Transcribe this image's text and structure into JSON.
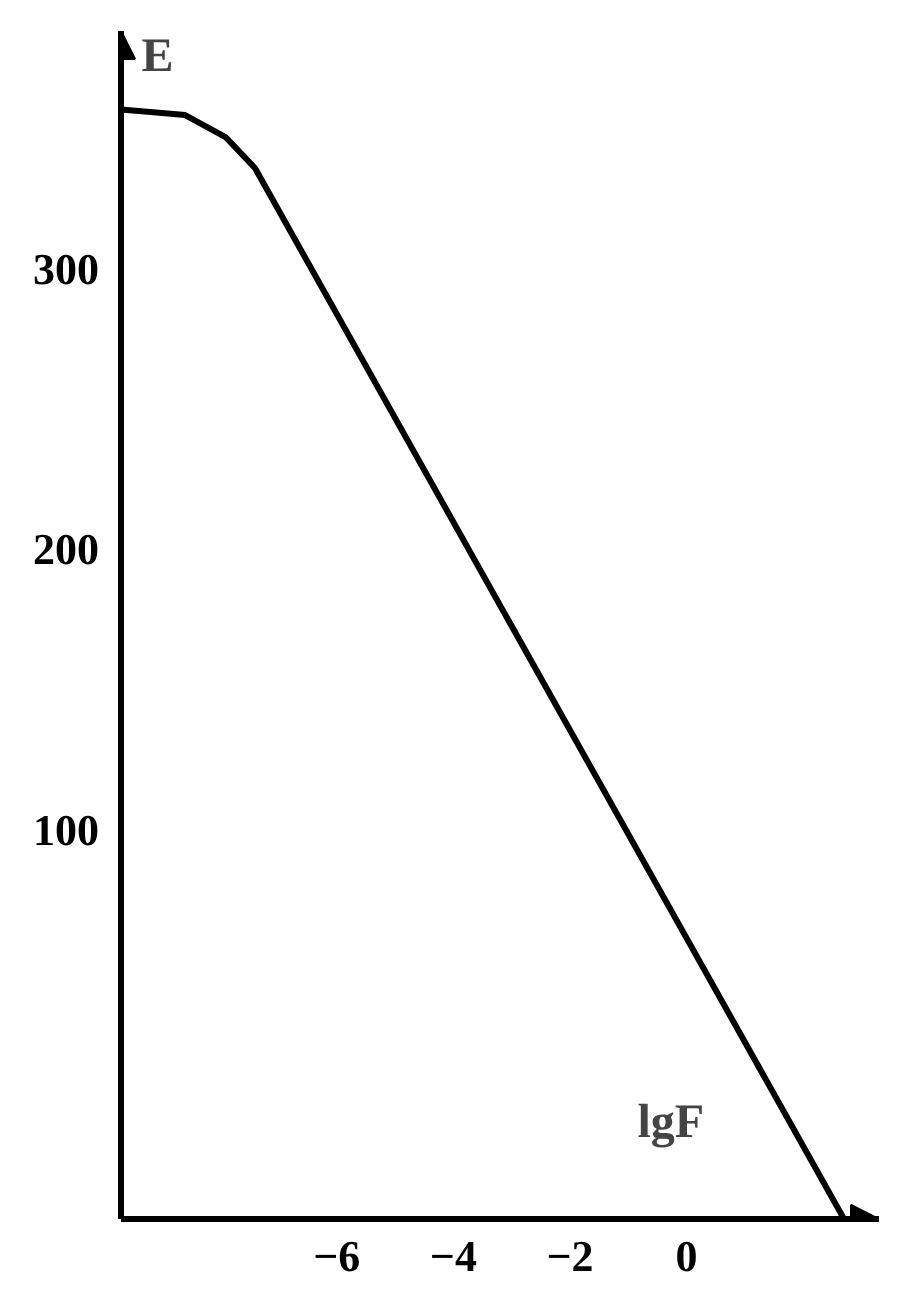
{
  "chart_data": {
    "type": "line",
    "xlabel": "lgF",
    "ylabel": "E",
    "x": [
      -9.7,
      -8.6,
      -7.9,
      -7.4,
      2.7
    ],
    "values": [
      357,
      355,
      347,
      336,
      -39
    ],
    "color": "#000000",
    "xlim": [
      -9.7,
      3.3
    ],
    "ylim": [
      -39,
      385
    ],
    "xticks": [
      -6,
      -4,
      -2,
      0
    ],
    "yticks": [
      100,
      200,
      300
    ],
    "grid": false,
    "marker": "none",
    "line_style": "solid"
  }
}
